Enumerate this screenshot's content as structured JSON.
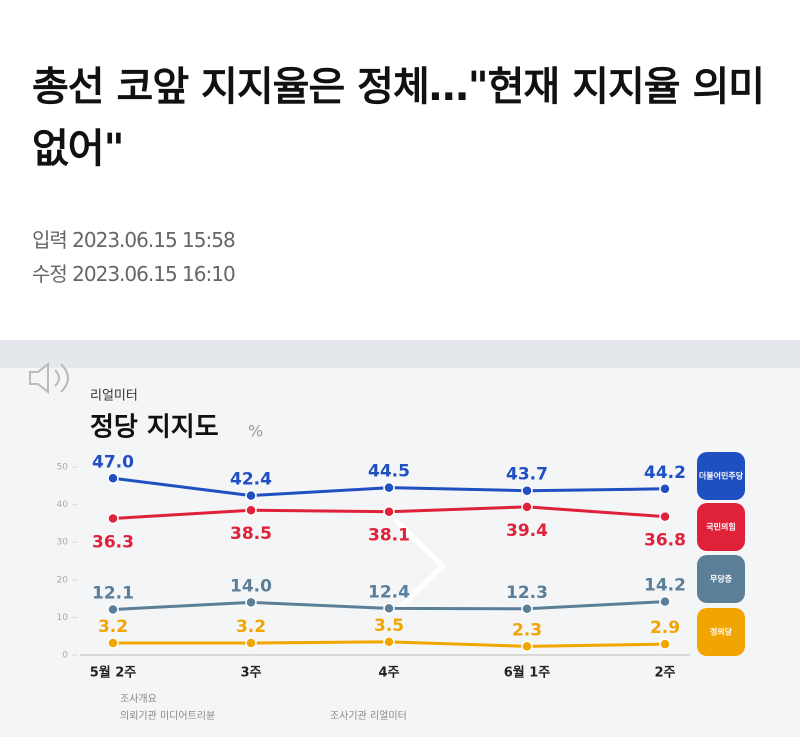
{
  "article": {
    "headline": "총선 코앞 지지율은 정체…\"현재 지지율 의미 없어\"",
    "published": "입력 2023.06.15 15:58",
    "modified": "수정 2023.06.15 16:10"
  },
  "chart_data": {
    "type": "line",
    "source": "리얼미터",
    "title": "정당 지지도",
    "unit": "%",
    "categories": [
      "5월 2주",
      "3주",
      "4주",
      "6월 1주",
      "2주"
    ],
    "series": [
      {
        "name": "더불어민주당",
        "color": "#1f4fc0",
        "values": [
          47.0,
          42.4,
          44.5,
          43.7,
          44.2
        ],
        "value_labels": [
          "47.0",
          "42.4",
          "44.5",
          "43.7",
          "44.2"
        ]
      },
      {
        "name": "국민의힘",
        "color": "#e0213a",
        "values": [
          36.3,
          38.5,
          38.1,
          39.4,
          36.8
        ],
        "value_labels": [
          "36.3",
          "38.5",
          "38.1",
          "39.4",
          "36.8"
        ]
      },
      {
        "name": "무당층",
        "color": "#5b7f99",
        "values": [
          12.1,
          14.0,
          12.4,
          12.3,
          14.2
        ],
        "value_labels": [
          "12.1",
          "14.0",
          "12.4",
          "12.3",
          "14.2"
        ]
      },
      {
        "name": "정의당",
        "color": "#f2a400",
        "values": [
          3.2,
          3.2,
          3.5,
          2.3,
          2.9
        ],
        "value_labels": [
          "3.2",
          "3.2",
          "3.5",
          "2.3",
          "2.9"
        ]
      }
    ],
    "ylim": [
      0,
      50
    ],
    "yticks": [
      0,
      10,
      20,
      30,
      40,
      50
    ],
    "grid": false,
    "notes": [
      "조사개요",
      "의뢰기관 미디어트리뷴",
      "조사기관 리얼미터"
    ]
  }
}
